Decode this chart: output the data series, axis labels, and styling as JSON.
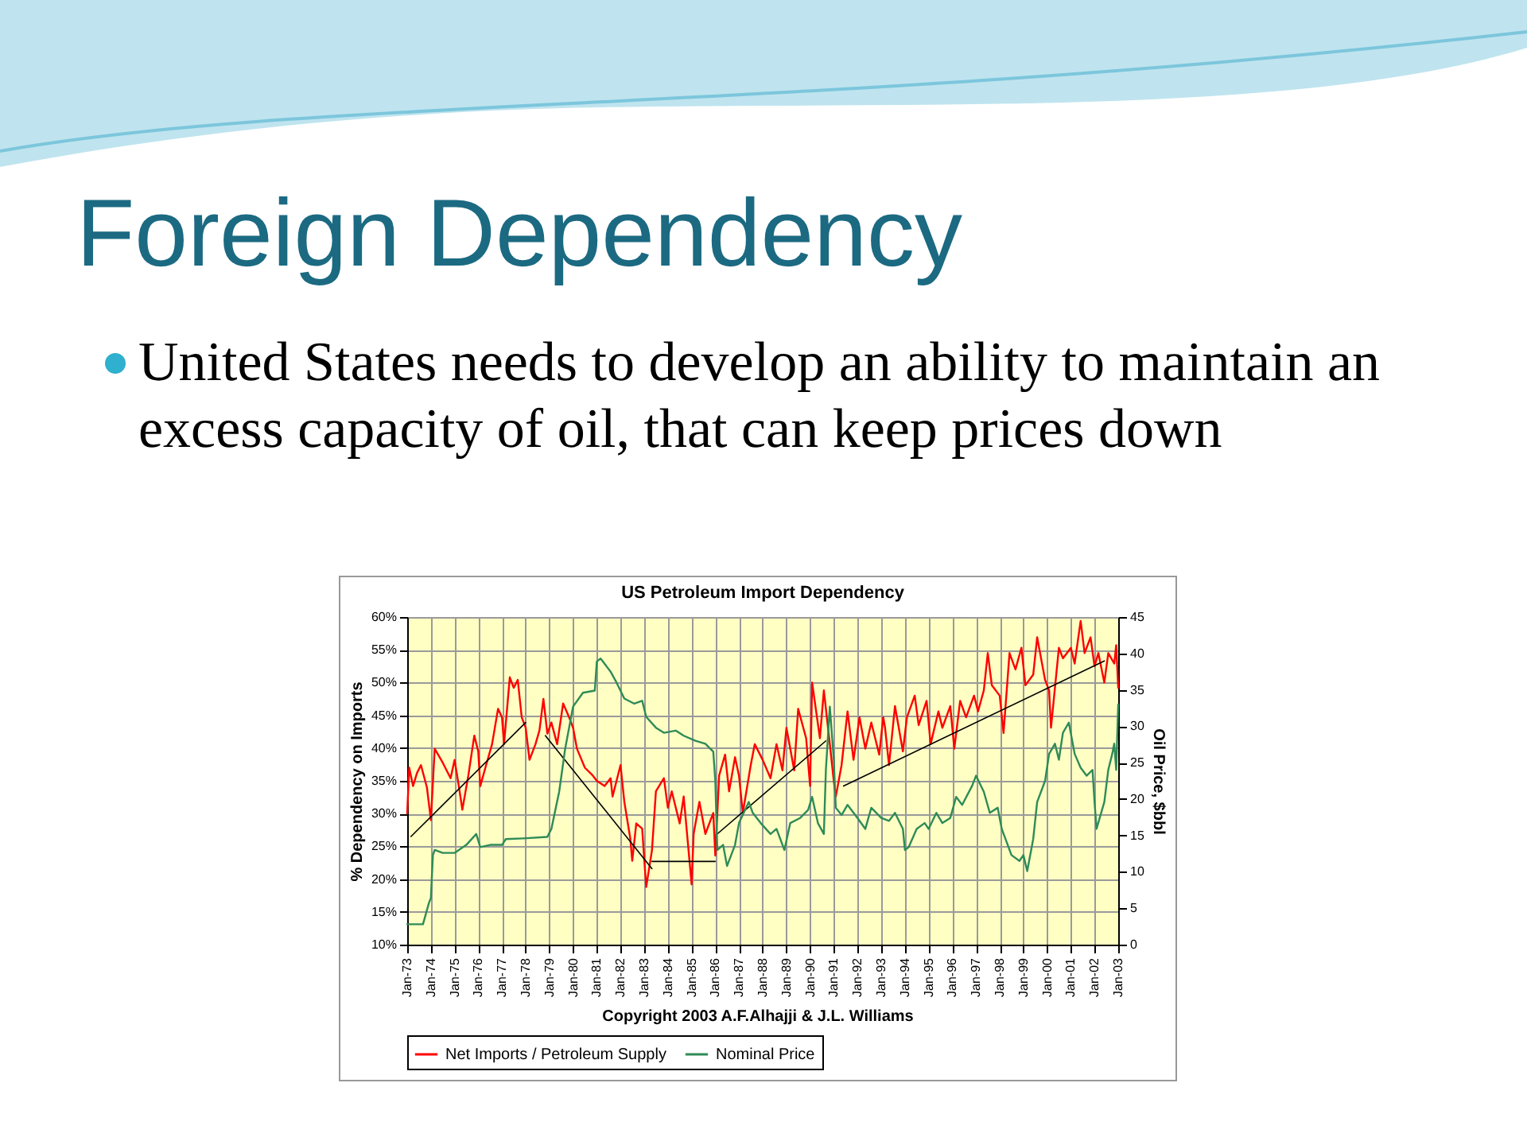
{
  "chart_data": {
    "type": "line",
    "title": "US Petroleum Import Dependency",
    "ylabel": "% Dependency on Imports",
    "y2label": "Oil Price, $bbl",
    "annotations": [
      "Foreign Dependency",
      "United States needs to develop an ability to maintain an excess capacity of oil, that can keep prices down",
      "Copyright 2003 A.F.Alhajji & J.L. Williams"
    ],
    "xlim": [
      "1973-01",
      "2003-01"
    ],
    "xticks": [
      {
        "value": "1973-01",
        "label": "Jan-73"
      },
      {
        "value": "1974-01",
        "label": "Jan-74"
      },
      {
        "value": "1975-01",
        "label": "Jan-75"
      },
      {
        "value": "1976-01",
        "label": "Jan-76"
      },
      {
        "value": "1977-01",
        "label": "Jan-77"
      },
      {
        "value": "1978-01",
        "label": "Jan-78"
      },
      {
        "value": "1979-01",
        "label": "Jan-79"
      },
      {
        "value": "1980-01",
        "label": "Jan-80"
      },
      {
        "value": "1981-01",
        "label": "Jan-81"
      },
      {
        "value": "1982-01",
        "label": "Jan-82"
      },
      {
        "value": "1983-01",
        "label": "Jan-83"
      },
      {
        "value": "1984-01",
        "label": "Jan-84"
      },
      {
        "value": "1985-01",
        "label": "Jan-85"
      },
      {
        "value": "1986-01",
        "label": "Jan-86"
      },
      {
        "value": "1987-01",
        "label": "Jan-87"
      },
      {
        "value": "1988-01",
        "label": "Jan-88"
      },
      {
        "value": "1989-01",
        "label": "Jan-89"
      },
      {
        "value": "1990-01",
        "label": "Jan-90"
      },
      {
        "value": "1991-01",
        "label": "Jan-91"
      },
      {
        "value": "1992-01",
        "label": "Jan-92"
      },
      {
        "value": "1993-01",
        "label": "Jan-93"
      },
      {
        "value": "1994-01",
        "label": "Jan-94"
      },
      {
        "value": "1995-01",
        "label": "Jan-95"
      },
      {
        "value": "1996-01",
        "label": "Jan-96"
      },
      {
        "value": "1997-01",
        "label": "Jan-97"
      },
      {
        "value": "1998-01",
        "label": "Jan-98"
      },
      {
        "value": "1999-01",
        "label": "Jan-99"
      },
      {
        "value": "2000-01",
        "label": "Jan-00"
      },
      {
        "value": "2001-01",
        "label": "Jan-01"
      },
      {
        "value": "2002-01",
        "label": "Jan-02"
      },
      {
        "value": "2003-01",
        "label": "Jan-03"
      }
    ],
    "ylim": [
      10,
      60
    ],
    "yticks": [
      {
        "value": 10,
        "label": "10%"
      },
      {
        "value": 15,
        "label": "15%"
      },
      {
        "value": 20,
        "label": "20%"
      },
      {
        "value": 25,
        "label": "25%"
      },
      {
        "value": 30,
        "label": "30%"
      },
      {
        "value": 35,
        "label": "35%"
      },
      {
        "value": 40,
        "label": "40%"
      },
      {
        "value": 45,
        "label": "45%"
      },
      {
        "value": 50,
        "label": "50%"
      },
      {
        "value": 55,
        "label": "55%"
      },
      {
        "value": 60,
        "label": "60%"
      }
    ],
    "y2lim": [
      0,
      45
    ],
    "y2ticks": [
      0,
      5,
      10,
      15,
      20,
      25,
      30,
      35,
      40,
      45
    ],
    "grid": true,
    "legend": "bottom",
    "series": [
      {
        "name": "Net Imports / Petroleum Supply",
        "color": "#ff0000",
        "x": [
          "1973-01",
          "1973-02",
          "1973-04",
          "1973-06",
          "1973-08",
          "1973-11",
          "1974-01",
          "1974-03",
          "1974-07",
          "1974-11",
          "1975-01",
          "1975-03",
          "1975-05",
          "1975-08",
          "1975-11",
          "1976-01",
          "1976-02",
          "1976-05",
          "1976-08",
          "1976-11",
          "1977-01",
          "1977-02",
          "1977-05",
          "1977-07",
          "1977-09",
          "1977-11",
          "1978-01",
          "1978-03",
          "1978-06",
          "1978-08",
          "1978-10",
          "1978-12",
          "1979-02",
          "1979-05",
          "1979-08",
          "1979-11",
          "1980-01",
          "1980-03",
          "1980-07",
          "1980-11",
          "1981-01",
          "1981-05",
          "1981-08",
          "1981-09",
          "1982-01",
          "1982-03",
          "1982-06",
          "1982-07",
          "1982-09",
          "1982-12",
          "1983-01",
          "1983-02",
          "1983-05",
          "1983-07",
          "1983-11",
          "1984-01",
          "1984-03",
          "1984-07",
          "1984-09",
          "1985-01",
          "1985-02",
          "1985-05",
          "1985-08",
          "1985-12",
          "1986-01",
          "1986-03",
          "1986-06",
          "1986-08",
          "1986-11",
          "1987-01",
          "1987-03",
          "1987-07",
          "1987-09",
          "1988-01",
          "1988-05",
          "1988-08",
          "1988-11",
          "1989-01",
          "1989-05",
          "1989-07",
          "1989-11",
          "1990-01",
          "1990-02",
          "1990-06",
          "1990-08",
          "1990-11",
          "1991-01",
          "1991-02",
          "1991-05",
          "1991-08",
          "1991-11",
          "1992-02",
          "1992-05",
          "1992-08",
          "1992-12",
          "1993-02",
          "1993-03",
          "1993-05",
          "1993-08",
          "1993-12",
          "1994-02",
          "1994-06",
          "1994-08",
          "1994-12",
          "1995-02",
          "1995-06",
          "1995-08",
          "1995-12",
          "1996-02",
          "1996-05",
          "1996-08",
          "1996-12",
          "1997-02",
          "1997-05",
          "1997-07",
          "1997-09",
          "1998-01",
          "1998-03",
          "1998-06",
          "1998-09",
          "1998-12",
          "1999-02",
          "1999-06",
          "1999-08",
          "1999-12",
          "2000-02",
          "2000-03",
          "2000-07",
          "2000-09",
          "2001-01",
          "2001-03",
          "2001-06",
          "2001-08",
          "2001-11",
          "2002-01",
          "2002-03",
          "2002-06",
          "2002-08",
          "2002-11",
          "2002-12",
          "2003-01"
        ],
        "values": [
          30,
          37,
          34.2,
          36.2,
          37.4,
          34,
          29,
          39.9,
          37.8,
          35.4,
          38.2,
          34.6,
          30.6,
          35.8,
          41.9,
          39.5,
          34.2,
          37.4,
          40.6,
          46,
          44.7,
          40.6,
          50.8,
          49.2,
          50.4,
          44.7,
          43.1,
          38.2,
          40.6,
          42.7,
          47.5,
          42.2,
          43.9,
          40.6,
          46.8,
          44.7,
          43.1,
          39.9,
          37,
          35.8,
          35,
          34.2,
          35.4,
          32.6,
          37.4,
          31.8,
          26.2,
          22.8,
          28.5,
          27.7,
          23.2,
          18.8,
          24.4,
          33.4,
          35.4,
          30.9,
          33.4,
          28.5,
          32.6,
          19.2,
          26.9,
          31.8,
          26.9,
          30.1,
          23.6,
          35.8,
          39,
          33.4,
          38.6,
          35.8,
          30.1,
          37.4,
          40.6,
          38.2,
          35.4,
          40.6,
          36.6,
          43.1,
          36.6,
          46,
          41.5,
          34.2,
          50,
          41.5,
          48.8,
          40.6,
          35,
          32.6,
          37.4,
          45.6,
          38.2,
          44.7,
          39.9,
          43.9,
          39,
          44.7,
          43.1,
          37.4,
          46.4,
          39.5,
          44.7,
          48,
          43.5,
          47.2,
          40.6,
          45.6,
          43.1,
          46.4,
          39.9,
          47.2,
          44.7,
          48,
          45.6,
          48.8,
          54.5,
          49.6,
          48,
          42.3,
          54.5,
          52,
          55.3,
          49.6,
          51.2,
          56.9,
          50.4,
          48.8,
          43.1,
          55.3,
          53.7,
          55.3,
          52.9,
          59.4,
          54.5,
          56.9,
          52.5,
          54.5,
          50,
          54.5,
          52.9,
          55.7,
          49.2
        ]
      },
      {
        "color": "#000000",
        "x": [
          "1973-03",
          "1978-01",
          "1978-03",
          "1978-11",
          "1983-05",
          "1984-01",
          "1986-01",
          "1983-05",
          "1986-01",
          "1986-02",
          "1990-09",
          "1991-01",
          "1991-06",
          "2002-06"
        ],
        "values": [
          26.5,
          43.9,
          null,
          41.9,
          21.6,
          null,
          22.7,
          22.7,
          null,
          26.9,
          41.1,
          null,
          34.2,
          53.3
        ]
      },
      {
        "name": "Nominal Price",
        "color": "#2e8b57",
        "axis": "y2",
        "x": [
          "1973-01",
          "1973-09",
          "1973-12",
          "1974-01",
          "1974-02",
          "1974-03",
          "1974-07",
          "1975-01",
          "1975-07",
          "1975-12",
          "1976-02",
          "1976-07",
          "1977-01",
          "1977-03",
          "1977-12",
          "1978-12",
          "1979-02",
          "1979-06",
          "1979-09",
          "1980-01",
          "1980-06",
          "1980-12",
          "1981-01",
          "1981-03",
          "1981-08",
          "1981-11",
          "1982-03",
          "1982-08",
          "1982-12",
          "1983-02",
          "1983-07",
          "1983-11",
          "1984-05",
          "1984-09",
          "1985-03",
          "1985-08",
          "1985-12",
          "1986-01",
          "1986-02",
          "1986-05",
          "1986-07",
          "1986-11",
          "1987-01",
          "1987-06",
          "1987-08",
          "1987-12",
          "1988-05",
          "1988-08",
          "1988-12",
          "1989-03",
          "1989-08",
          "1989-12",
          "1990-02",
          "1990-05",
          "1990-08",
          "1990-09",
          "1990-11",
          "1991-01",
          "1991-02",
          "1991-05",
          "1991-08",
          "1992-01",
          "1992-05",
          "1992-08",
          "1993-01",
          "1993-05",
          "1993-08",
          "1993-12",
          "1994-01",
          "1994-03",
          "1994-07",
          "1994-11",
          "1995-01",
          "1995-05",
          "1995-08",
          "1995-12",
          "1996-03",
          "1996-06",
          "1996-11",
          "1997-01",
          "1997-05",
          "1997-08",
          "1997-12",
          "1998-02",
          "1998-07",
          "1998-11",
          "1999-01",
          "1999-03",
          "1999-06",
          "1999-08",
          "1999-12",
          "2000-02",
          "2000-05",
          "2000-07",
          "2000-09",
          "2000-12",
          "2001-03",
          "2001-06",
          "2001-09",
          "2001-12",
          "2002-01",
          "2002-02",
          "2002-06",
          "2002-08",
          "2002-10",
          "2002-11",
          "2002-12",
          "2003-01"
        ],
        "values": [
          2.8,
          2.8,
          5.7,
          6.4,
          12.3,
          13,
          12.6,
          12.6,
          13.7,
          15.2,
          13.4,
          13.7,
          13.7,
          14.5,
          14.6,
          14.8,
          15.9,
          21,
          26.9,
          32.7,
          34.6,
          34.9,
          38.9,
          39.3,
          37.5,
          36,
          33.8,
          33.1,
          33.5,
          31.3,
          29.8,
          29.1,
          29.4,
          28.7,
          28,
          27.6,
          26.5,
          22.5,
          13,
          13.7,
          10.8,
          13.7,
          16.7,
          19.6,
          18.1,
          16.7,
          15.2,
          15.9,
          13,
          16.7,
          17.4,
          18.5,
          20.3,
          16.7,
          15.2,
          24,
          32.7,
          25.4,
          18.8,
          17.8,
          19.2,
          17.4,
          15.9,
          18.8,
          17.4,
          17,
          18.1,
          15.9,
          13,
          13.4,
          15.9,
          16.7,
          15.9,
          18.1,
          16.7,
          17.4,
          20.3,
          19.2,
          21.8,
          23.2,
          21,
          18.1,
          18.8,
          15.9,
          12.3,
          11.5,
          12.3,
          10.1,
          14.5,
          19.6,
          22.5,
          26.2,
          27.6,
          25.4,
          29.1,
          30.5,
          26.2,
          24.3,
          23.2,
          24,
          19.6,
          15.9,
          19.6,
          24,
          26.2,
          27.6,
          24,
          33
        ]
      }
    ]
  }
}
